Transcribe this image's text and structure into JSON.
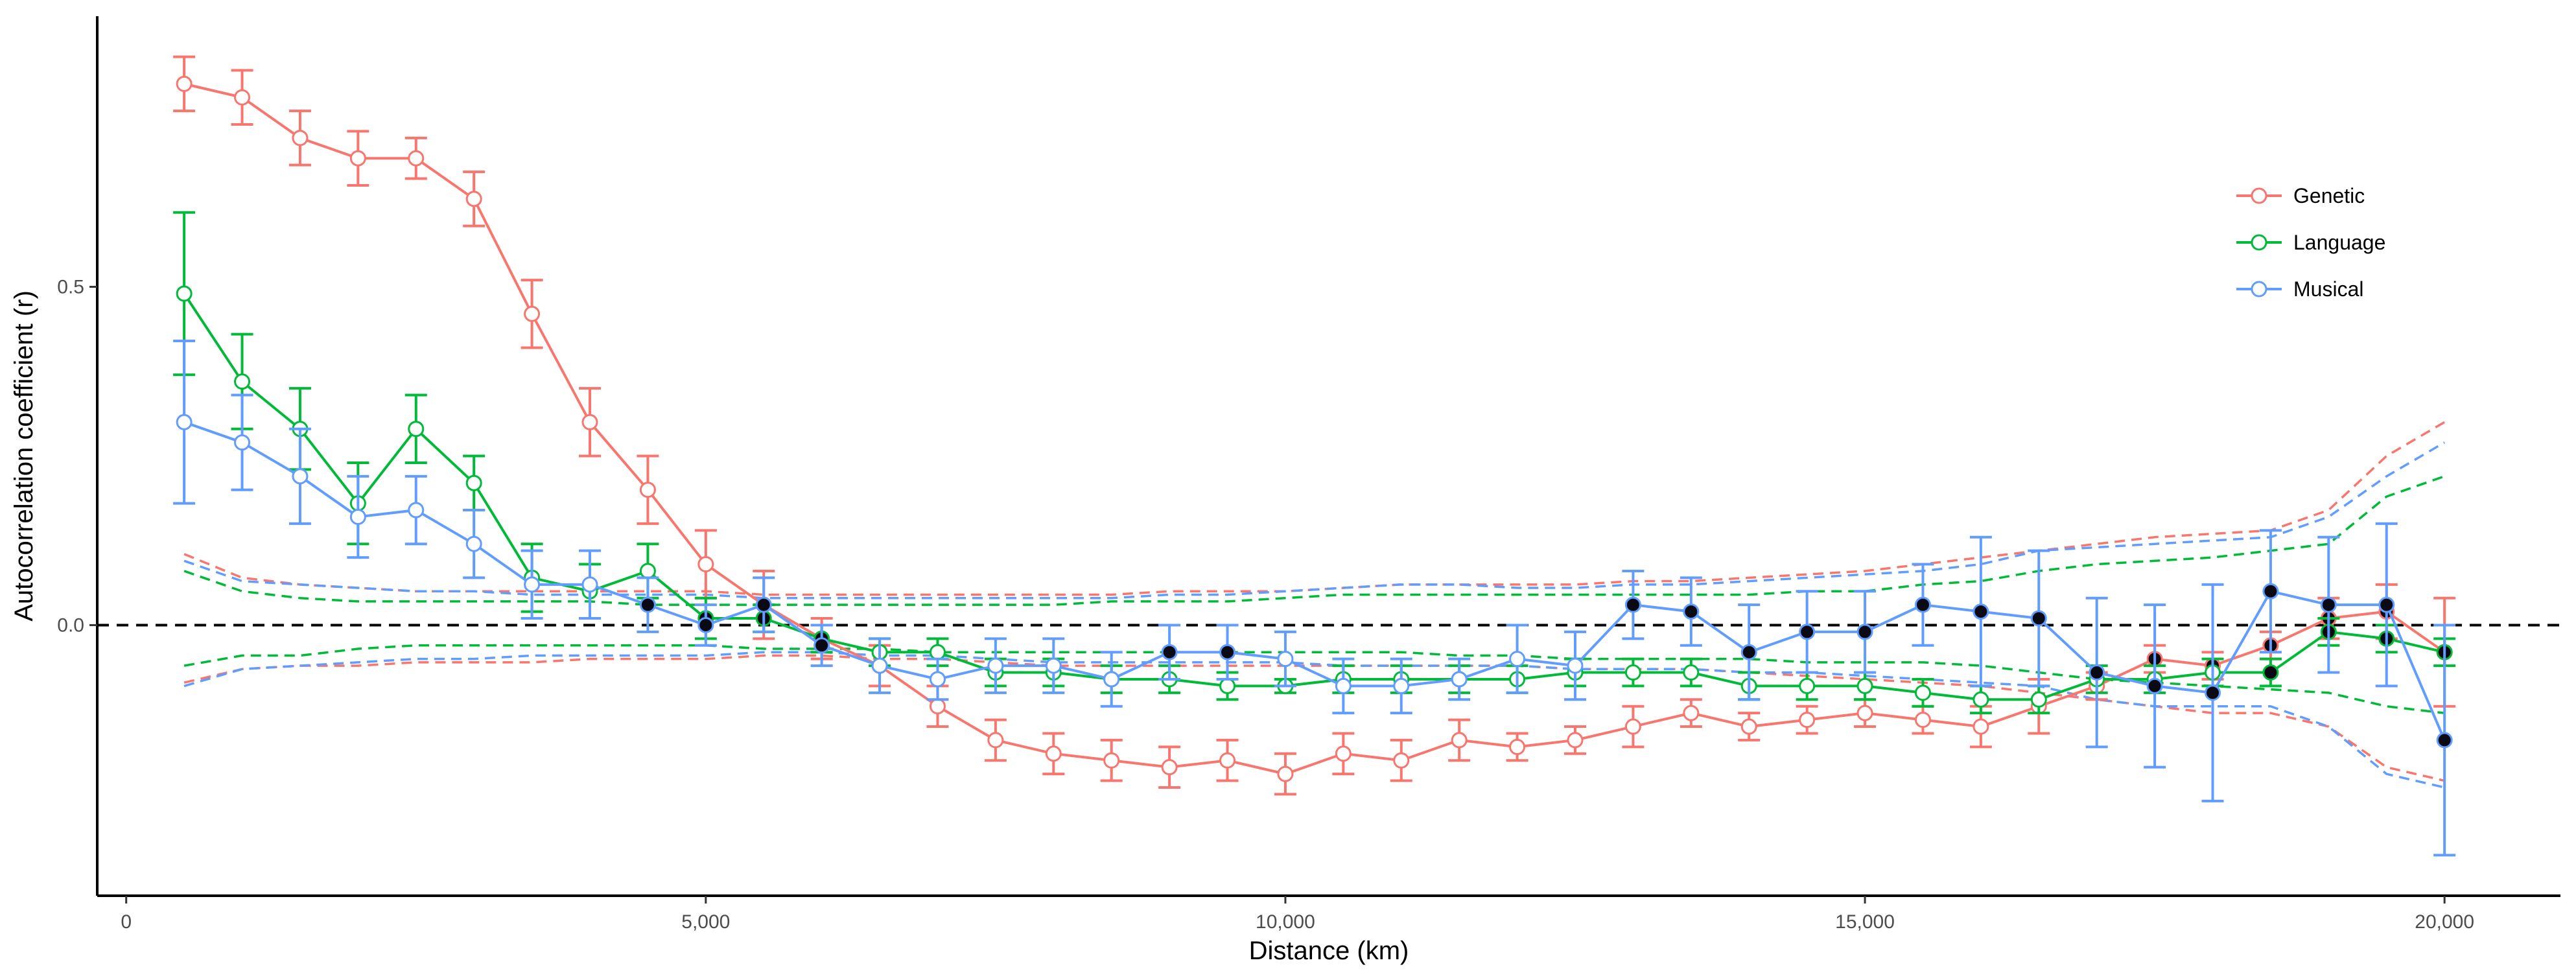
{
  "chart_data": {
    "type": "line",
    "xlabel": "Distance (km)",
    "ylabel": "Autocorrelation coefficient (r)",
    "xlim": [
      -250,
      21000
    ],
    "ylim": [
      -0.4,
      0.9
    ],
    "x_ticks": [
      0,
      5000,
      10000,
      15000,
      20000
    ],
    "x_tick_labels": [
      "0",
      "5,000",
      "10,000",
      "15,000",
      "20,000"
    ],
    "y_ticks": [
      0.0,
      0.5
    ],
    "y_tick_labels": [
      "0.0",
      "0.5"
    ],
    "zero_line": "dashed",
    "grid": false,
    "legend_position": "right",
    "x": [
      500,
      1000,
      1500,
      2000,
      2500,
      3000,
      3500,
      4000,
      4500,
      5000,
      5500,
      6000,
      6500,
      7000,
      7500,
      8000,
      8500,
      9000,
      9500,
      10000,
      10500,
      11000,
      11500,
      12000,
      12500,
      13000,
      13500,
      14000,
      14500,
      15000,
      15500,
      16000,
      16500,
      17000,
      17500,
      18000,
      18500,
      19000,
      19500,
      20000
    ],
    "series": [
      {
        "name": "Genetic",
        "color": "#F8766D",
        "values": [
          0.8,
          0.78,
          0.72,
          0.69,
          0.69,
          0.63,
          0.46,
          0.3,
          0.2,
          0.09,
          0.03,
          -0.02,
          -0.06,
          -0.12,
          -0.17,
          -0.19,
          -0.2,
          -0.21,
          -0.2,
          -0.22,
          -0.19,
          -0.2,
          -0.17,
          -0.18,
          -0.17,
          -0.15,
          -0.13,
          -0.15,
          -0.14,
          -0.13,
          -0.14,
          -0.15,
          -0.12,
          -0.09,
          -0.05,
          -0.06,
          -0.03,
          0.01,
          0.02,
          -0.04
        ],
        "err": [
          0.04,
          0.04,
          0.04,
          0.04,
          0.03,
          0.04,
          0.05,
          0.05,
          0.05,
          0.05,
          0.05,
          0.03,
          0.03,
          0.03,
          0.03,
          0.03,
          0.03,
          0.03,
          0.03,
          0.03,
          0.03,
          0.03,
          0.03,
          0.02,
          0.02,
          0.03,
          0.02,
          0.02,
          0.02,
          0.02,
          0.02,
          0.03,
          0.04,
          0.02,
          0.02,
          0.02,
          0.02,
          0.03,
          0.04,
          0.08
        ],
        "significant": [
          false,
          false,
          false,
          false,
          false,
          false,
          false,
          false,
          false,
          false,
          false,
          false,
          false,
          false,
          false,
          false,
          false,
          false,
          false,
          false,
          false,
          false,
          false,
          false,
          false,
          false,
          false,
          false,
          false,
          false,
          false,
          false,
          false,
          false,
          true,
          true,
          true,
          true,
          true,
          true
        ],
        "ci_upper": [
          0.105,
          0.07,
          0.06,
          0.055,
          0.05,
          0.05,
          0.05,
          0.05,
          0.05,
          0.05,
          0.045,
          0.045,
          0.045,
          0.045,
          0.045,
          0.045,
          0.045,
          0.05,
          0.05,
          0.05,
          0.055,
          0.06,
          0.06,
          0.06,
          0.06,
          0.065,
          0.065,
          0.07,
          0.075,
          0.08,
          0.09,
          0.1,
          0.11,
          0.12,
          0.13,
          0.135,
          0.14,
          0.17,
          0.25,
          0.3
        ],
        "ci_lower": [
          -0.085,
          -0.065,
          -0.06,
          -0.06,
          -0.055,
          -0.055,
          -0.055,
          -0.05,
          -0.05,
          -0.05,
          -0.045,
          -0.045,
          -0.05,
          -0.05,
          -0.055,
          -0.06,
          -0.06,
          -0.06,
          -0.06,
          -0.06,
          -0.06,
          -0.06,
          -0.06,
          -0.06,
          -0.065,
          -0.065,
          -0.065,
          -0.07,
          -0.075,
          -0.08,
          -0.085,
          -0.09,
          -0.1,
          -0.11,
          -0.12,
          -0.13,
          -0.13,
          -0.15,
          -0.21,
          -0.23
        ]
      },
      {
        "name": "Language",
        "color": "#00BA38",
        "values": [
          0.49,
          0.36,
          0.29,
          0.18,
          0.29,
          0.21,
          0.07,
          0.05,
          0.08,
          0.01,
          0.01,
          -0.02,
          -0.04,
          -0.04,
          -0.07,
          -0.07,
          -0.08,
          -0.08,
          -0.09,
          -0.09,
          -0.08,
          -0.08,
          -0.08,
          -0.08,
          -0.07,
          -0.07,
          -0.07,
          -0.09,
          -0.09,
          -0.09,
          -0.1,
          -0.11,
          -0.11,
          -0.08,
          -0.08,
          -0.07,
          -0.07,
          -0.01,
          -0.02,
          -0.04
        ],
        "err": [
          0.12,
          0.07,
          0.06,
          0.06,
          0.05,
          0.04,
          0.05,
          0.04,
          0.04,
          0.03,
          0.02,
          0.02,
          0.02,
          0.02,
          0.02,
          0.02,
          0.02,
          0.02,
          0.02,
          0.01,
          0.02,
          0.02,
          0.02,
          0.02,
          0.02,
          0.02,
          0.02,
          0.02,
          0.02,
          0.02,
          0.02,
          0.02,
          0.02,
          0.02,
          0.02,
          0.02,
          0.02,
          0.02,
          0.02,
          0.02
        ],
        "significant": [
          false,
          false,
          false,
          false,
          false,
          false,
          false,
          false,
          false,
          true,
          true,
          true,
          false,
          false,
          false,
          false,
          false,
          false,
          false,
          false,
          false,
          false,
          false,
          false,
          false,
          false,
          false,
          false,
          false,
          false,
          false,
          false,
          false,
          false,
          false,
          false,
          true,
          true,
          true,
          true
        ],
        "ci_upper": [
          0.08,
          0.05,
          0.04,
          0.035,
          0.035,
          0.035,
          0.035,
          0.035,
          0.03,
          0.03,
          0.03,
          0.03,
          0.03,
          0.03,
          0.03,
          0.03,
          0.035,
          0.035,
          0.035,
          0.04,
          0.045,
          0.045,
          0.045,
          0.045,
          0.045,
          0.045,
          0.045,
          0.045,
          0.05,
          0.05,
          0.06,
          0.065,
          0.08,
          0.09,
          0.095,
          0.1,
          0.11,
          0.12,
          0.19,
          0.22
        ],
        "ci_lower": [
          -0.06,
          -0.045,
          -0.045,
          -0.035,
          -0.03,
          -0.03,
          -0.03,
          -0.03,
          -0.03,
          -0.03,
          -0.035,
          -0.035,
          -0.035,
          -0.04,
          -0.04,
          -0.04,
          -0.04,
          -0.04,
          -0.04,
          -0.04,
          -0.04,
          -0.04,
          -0.045,
          -0.045,
          -0.05,
          -0.05,
          -0.05,
          -0.05,
          -0.055,
          -0.055,
          -0.055,
          -0.06,
          -0.07,
          -0.08,
          -0.085,
          -0.09,
          -0.095,
          -0.1,
          -0.12,
          -0.13
        ]
      },
      {
        "name": "Musical",
        "color": "#619CFF",
        "values": [
          0.3,
          0.27,
          0.22,
          0.16,
          0.17,
          0.12,
          0.06,
          0.06,
          0.03,
          0.0,
          0.03,
          -0.03,
          -0.06,
          -0.08,
          -0.06,
          -0.06,
          -0.08,
          -0.04,
          -0.04,
          -0.05,
          -0.09,
          -0.09,
          -0.08,
          -0.05,
          -0.06,
          0.03,
          0.02,
          -0.04,
          -0.01,
          -0.01,
          0.03,
          0.02,
          0.01,
          -0.07,
          -0.09,
          -0.1,
          0.05,
          0.03,
          0.03,
          -0.17
        ],
        "err": [
          0.12,
          0.07,
          0.07,
          0.06,
          0.05,
          0.05,
          0.05,
          0.05,
          0.04,
          0.03,
          0.04,
          0.03,
          0.04,
          0.03,
          0.04,
          0.04,
          0.04,
          0.04,
          0.04,
          0.04,
          0.04,
          0.04,
          0.03,
          0.05,
          0.05,
          0.05,
          0.05,
          0.07,
          0.06,
          0.06,
          0.06,
          0.11,
          0.1,
          0.11,
          0.12,
          0.16,
          0.09,
          0.1,
          0.12,
          0.17
        ],
        "significant": [
          false,
          false,
          false,
          false,
          false,
          false,
          false,
          false,
          true,
          true,
          true,
          true,
          false,
          false,
          false,
          false,
          false,
          true,
          true,
          false,
          false,
          false,
          false,
          false,
          false,
          true,
          true,
          true,
          true,
          true,
          true,
          true,
          true,
          true,
          true,
          true,
          true,
          true,
          true,
          true
        ],
        "ci_upper": [
          0.095,
          0.065,
          0.06,
          0.055,
          0.05,
          0.05,
          0.045,
          0.045,
          0.045,
          0.045,
          0.04,
          0.04,
          0.04,
          0.04,
          0.04,
          0.04,
          0.04,
          0.045,
          0.045,
          0.05,
          0.055,
          0.06,
          0.06,
          0.055,
          0.055,
          0.06,
          0.06,
          0.065,
          0.07,
          0.075,
          0.08,
          0.09,
          0.11,
          0.115,
          0.12,
          0.125,
          0.13,
          0.16,
          0.22,
          0.27
        ],
        "ci_lower": [
          -0.09,
          -0.065,
          -0.06,
          -0.055,
          -0.05,
          -0.05,
          -0.045,
          -0.045,
          -0.045,
          -0.045,
          -0.04,
          -0.04,
          -0.045,
          -0.045,
          -0.05,
          -0.055,
          -0.055,
          -0.055,
          -0.055,
          -0.055,
          -0.06,
          -0.06,
          -0.06,
          -0.06,
          -0.065,
          -0.065,
          -0.065,
          -0.07,
          -0.07,
          -0.075,
          -0.08,
          -0.085,
          -0.09,
          -0.11,
          -0.12,
          -0.12,
          -0.12,
          -0.15,
          -0.22,
          -0.24
        ]
      }
    ]
  }
}
